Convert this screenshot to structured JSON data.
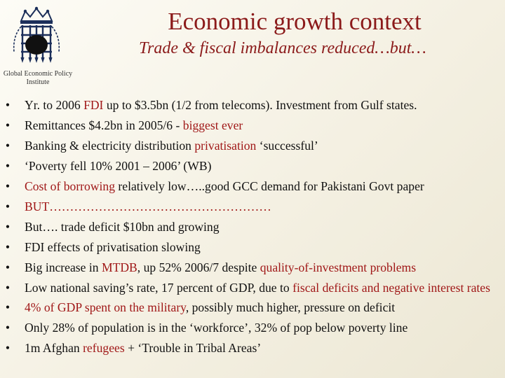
{
  "header": {
    "title": "Economic growth context",
    "subtitle": "Trade & fiscal imbalances reduced…but…",
    "logo_label": "Global Economic Policy Institute"
  },
  "bullets": [
    {
      "parts": [
        {
          "text": "Yr. to 2006 "
        },
        {
          "text": "FDI",
          "hl": true
        },
        {
          "text": " up to $3.5bn (1/2 from telecoms). Investment from Gulf states."
        }
      ]
    },
    {
      "parts": [
        {
          "text": "Remittances $4.2bn in 2005/6 - "
        },
        {
          "text": "biggest ever",
          "hl": true
        }
      ]
    },
    {
      "parts": [
        {
          "text": "Banking & electricity distribution "
        },
        {
          "text": "privatisation",
          "hl": true
        },
        {
          "text": " ‘successful’"
        }
      ]
    },
    {
      "parts": [
        {
          "text": "‘Poverty fell 10% 2001 – 2006’ (WB)"
        }
      ]
    },
    {
      "parts": [
        {
          "text": "Cost of borrowing",
          "hl": true
        },
        {
          "text": " relatively low…..good GCC demand for Pakistani Govt paper"
        }
      ]
    },
    {
      "parts": [
        {
          "text": "BUT………………………………………………",
          "hl": true
        }
      ]
    },
    {
      "parts": [
        {
          "text": "But…. trade deficit $10bn and growing"
        }
      ]
    },
    {
      "parts": [
        {
          "text": "FDI effects of privatisation slowing"
        }
      ]
    },
    {
      "parts": [
        {
          "text": "Big increase in "
        },
        {
          "text": "MTDB",
          "hl": true
        },
        {
          "text": ", up 52% 2006/7 despite "
        },
        {
          "text": "quality-of-investment problems",
          "hl": true
        }
      ]
    },
    {
      "tall": true,
      "parts": [
        {
          "text": "Low national saving’s rate, 17 percent of GDP, due to "
        },
        {
          "text": "fiscal deficits and negative interest rates",
          "hl": true
        }
      ]
    },
    {
      "parts": [
        {
          "text": "4% of GDP spent on the military",
          "hl": true
        },
        {
          "text": ", possibly much higher, pressure on deficit"
        }
      ]
    },
    {
      "parts": [
        {
          "text": "Only 28% of population is in the ‘workforce’, 32% of pop below poverty line"
        }
      ]
    },
    {
      "parts": [
        {
          "text": "1m Afghan "
        },
        {
          "text": "refugees",
          "hl": true
        },
        {
          "text": "  +  ‘Trouble in Tribal Areas’"
        }
      ]
    }
  ],
  "colors": {
    "accent": "#8b1a1a",
    "highlight": "#a01818",
    "text": "#111111"
  },
  "icons": {
    "logo": "portcullis-icon"
  }
}
